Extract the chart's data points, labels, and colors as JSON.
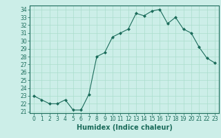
{
  "x": [
    0,
    1,
    2,
    3,
    4,
    5,
    6,
    7,
    8,
    9,
    10,
    11,
    12,
    13,
    14,
    15,
    16,
    17,
    18,
    19,
    20,
    21,
    22,
    23
  ],
  "y": [
    23.0,
    22.5,
    22.0,
    22.0,
    22.5,
    21.2,
    21.2,
    23.2,
    28.0,
    28.5,
    30.5,
    31.0,
    31.5,
    33.5,
    33.2,
    33.8,
    34.0,
    32.2,
    33.0,
    31.5,
    31.0,
    29.2,
    27.8,
    27.2
  ],
  "line_color": "#1a6b5a",
  "marker": "D",
  "marker_size": 2.0,
  "bg_color": "#cceee8",
  "grid_color": "#aaddcc",
  "title": "",
  "xlabel": "Humidex (Indice chaleur)",
  "ylabel": "",
  "xlim": [
    -0.5,
    23.5
  ],
  "ylim": [
    20.8,
    34.5
  ],
  "yticks": [
    21,
    22,
    23,
    24,
    25,
    26,
    27,
    28,
    29,
    30,
    31,
    32,
    33,
    34
  ],
  "xticks": [
    0,
    1,
    2,
    3,
    4,
    5,
    6,
    7,
    8,
    9,
    10,
    11,
    12,
    13,
    14,
    15,
    16,
    17,
    18,
    19,
    20,
    21,
    22,
    23
  ],
  "tick_fontsize": 5.5,
  "xlabel_fontsize": 7.0,
  "tick_color": "#1a6b5a",
  "spine_color": "#1a6b5a"
}
